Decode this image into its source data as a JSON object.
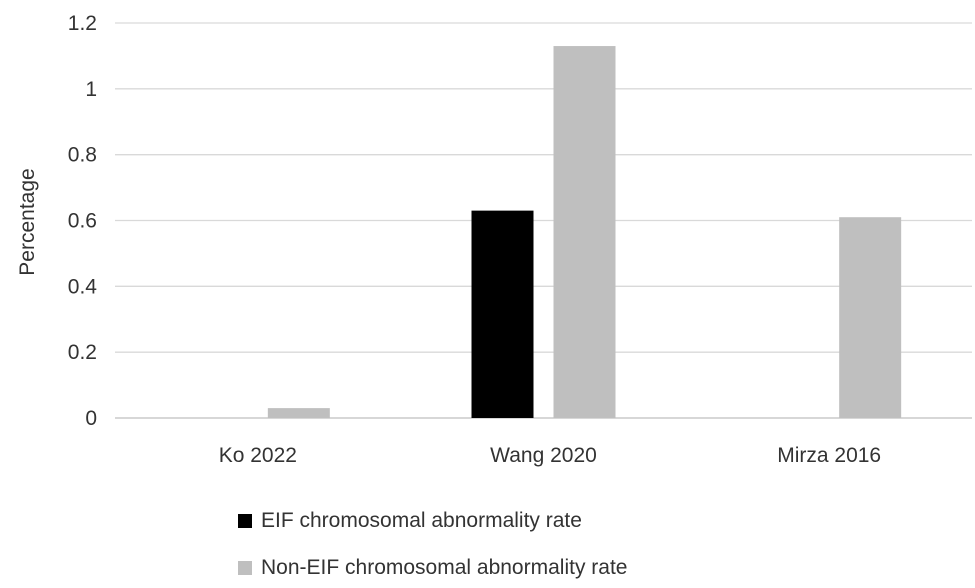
{
  "chart_data": {
    "type": "bar",
    "title": "",
    "xlabel": "",
    "ylabel": "Percentage",
    "categories": [
      "Ko 2022",
      "Wang 2020",
      "Mirza 2016"
    ],
    "series": [
      {
        "name": "EIF chromosomal abnormality rate",
        "values": [
          0,
          0.63,
          0
        ],
        "color": "#000000"
      },
      {
        "name": "Non-EIF chromosomal abnormality rate",
        "values": [
          0.03,
          1.13,
          0.61
        ],
        "color": "#bfbfbf"
      }
    ],
    "ylim": [
      0,
      1.2
    ],
    "yticks": [
      "0",
      "0.2",
      "0.4",
      "0.6",
      "0.8",
      "1",
      "1.2"
    ],
    "grid": true,
    "legend_position": "bottom"
  }
}
